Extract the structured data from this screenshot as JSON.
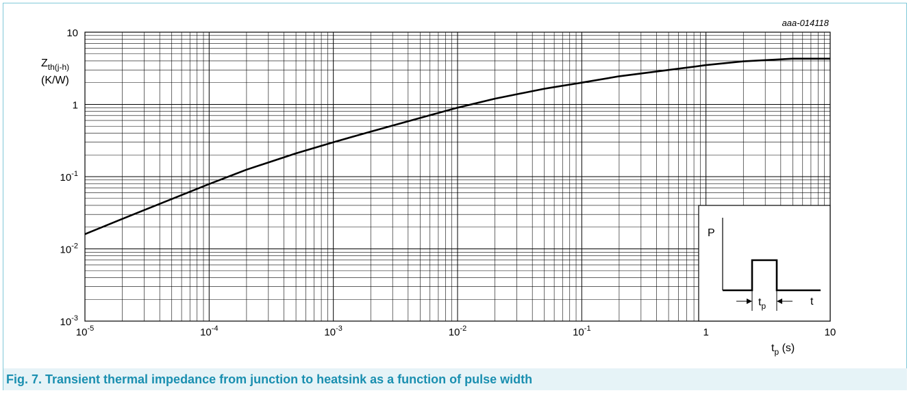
{
  "figure": {
    "id_label": "aaa-014118",
    "caption": "Fig. 7. Transient thermal impedance from junction to heatsink as a function of pulse width"
  },
  "chart_data": {
    "type": "line",
    "title": "",
    "ylabel": {
      "main": "Z",
      "sub": "th(j-h)",
      "unit": "(K/W)"
    },
    "xlabel": {
      "main": "t",
      "sub": "p",
      "unit": " (s)"
    },
    "x_scale": "log",
    "y_scale": "log",
    "xlim": [
      1e-05,
      10
    ],
    "ylim": [
      0.001,
      10
    ],
    "grid": true,
    "x_ticks": [
      {
        "base": "10",
        "exp": "-5"
      },
      {
        "base": "10",
        "exp": "-4"
      },
      {
        "base": "10",
        "exp": "-3"
      },
      {
        "base": "10",
        "exp": "-2"
      },
      {
        "base": "10",
        "exp": "-1"
      },
      {
        "base": "1",
        "exp": ""
      },
      {
        "base": "10",
        "exp": ""
      }
    ],
    "y_ticks": [
      {
        "base": "10",
        "exp": "-3"
      },
      {
        "base": "10",
        "exp": "-2"
      },
      {
        "base": "10",
        "exp": "-1"
      },
      {
        "base": "1",
        "exp": ""
      },
      {
        "base": "10",
        "exp": ""
      }
    ],
    "series": [
      {
        "x": [
          1e-05,
          2e-05,
          5e-05,
          0.0001,
          0.0002,
          0.0005,
          0.001,
          0.002,
          0.005,
          0.01,
          0.02,
          0.05,
          0.1,
          0.2,
          0.5,
          1,
          2,
          5,
          10
        ],
        "y": [
          0.016,
          0.026,
          0.049,
          0.079,
          0.125,
          0.21,
          0.3,
          0.42,
          0.65,
          0.9,
          1.2,
          1.65,
          2.0,
          2.45,
          3.0,
          3.5,
          3.95,
          4.3,
          4.3
        ]
      }
    ],
    "inset": {
      "p_label": "P",
      "t_label": "t",
      "tp_main": "t",
      "tp_sub": "p"
    }
  }
}
